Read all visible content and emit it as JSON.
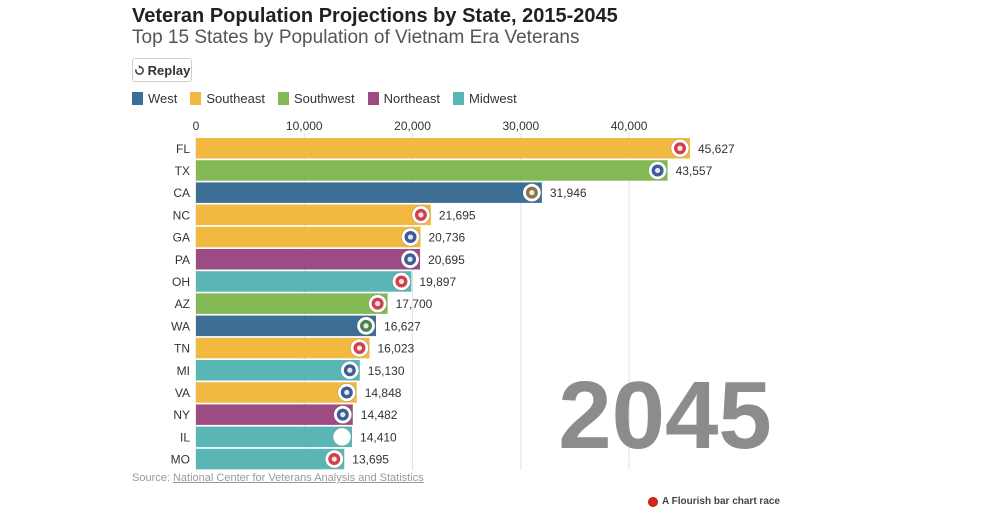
{
  "header": {
    "title": "Veteran Population Projections by State, 2015-2045",
    "subtitle": "Top 15 States by Population of Vietnam Era Veterans"
  },
  "controls": {
    "replay_label": "Replay",
    "replay_icon": "replay-icon"
  },
  "legend": [
    {
      "label": "West",
      "color": "#3d6f96"
    },
    {
      "label": "Southeast",
      "color": "#f1b93f"
    },
    {
      "label": "Southwest",
      "color": "#83b955"
    },
    {
      "label": "Northeast",
      "color": "#9c4b83"
    },
    {
      "label": "Midwest",
      "color": "#59b6b4"
    }
  ],
  "year_label": "2045",
  "footer": {
    "source_prefix": "Source: ",
    "source_link": "National Center for Veterans Analysis and Statistics",
    "credit": "A Flourish bar chart race"
  },
  "chart_data": {
    "type": "bar",
    "orientation": "horizontal",
    "year": "2045",
    "xlim": [
      0,
      45627
    ],
    "x_ticks": [
      0,
      10000,
      20000,
      30000,
      40000
    ],
    "x_tick_labels": [
      "0",
      "10,000",
      "20,000",
      "30,000",
      "40,000"
    ],
    "grid": true,
    "legend_position": "top-left",
    "categories": [
      "FL",
      "TX",
      "CA",
      "NC",
      "GA",
      "PA",
      "OH",
      "AZ",
      "WA",
      "TN",
      "MI",
      "VA",
      "NY",
      "IL",
      "MO"
    ],
    "values": [
      45627,
      43557,
      31946,
      21695,
      20736,
      20695,
      19897,
      17700,
      16627,
      16023,
      15130,
      14848,
      14482,
      14410,
      13695
    ],
    "value_labels": [
      "45,627",
      "43,557",
      "31,946",
      "21,695",
      "20,736",
      "20,695",
      "19,897",
      "17,700",
      "16,627",
      "16,023",
      "15,130",
      "14,848",
      "14,482",
      "14,410",
      "13,695"
    ],
    "regions": [
      "Southeast",
      "Southwest",
      "West",
      "Southeast",
      "Southeast",
      "Northeast",
      "Midwest",
      "Southwest",
      "West",
      "Southeast",
      "Midwest",
      "Southeast",
      "Northeast",
      "Midwest",
      "Midwest"
    ],
    "region_colors": {
      "West": "#3d6f96",
      "Southeast": "#f1b93f",
      "Southwest": "#83b955",
      "Northeast": "#9c4b83",
      "Midwest": "#59b6b4"
    },
    "flag_icons": [
      "florida-flag-icon",
      "texas-flag-icon",
      "california-flag-icon",
      "north-carolina-flag-icon",
      "georgia-flag-icon",
      "pennsylvania-flag-icon",
      "ohio-flag-icon",
      "arizona-flag-icon",
      "washington-flag-icon",
      "tennessee-flag-icon",
      "michigan-flag-icon",
      "virginia-flag-icon",
      "new-york-flag-icon",
      "illinois-flag-icon",
      "missouri-flag-icon"
    ]
  }
}
